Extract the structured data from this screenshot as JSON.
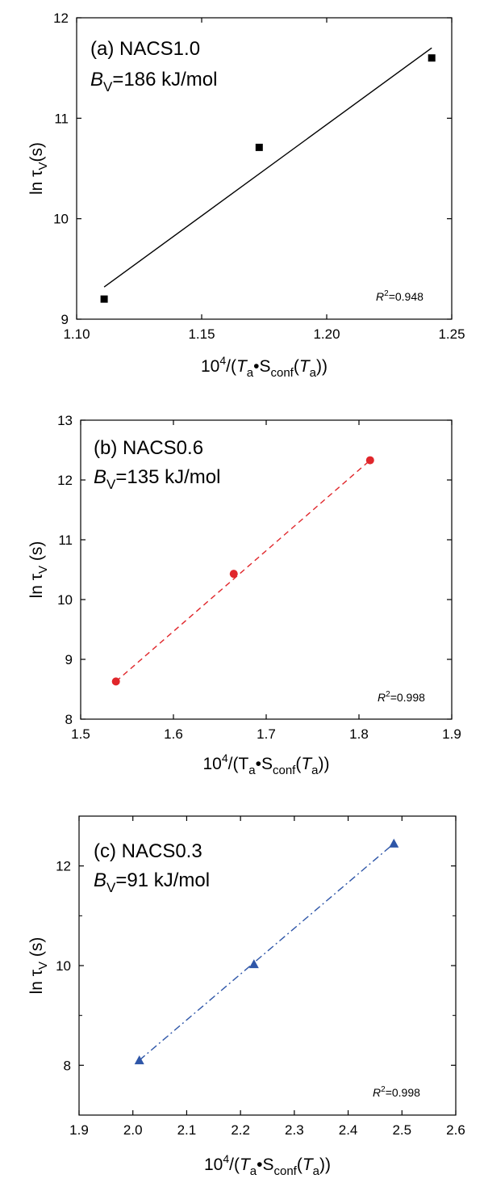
{
  "chart_data": [
    {
      "type": "scatter",
      "panel": "(a) NACS1.0",
      "bv_symbol": "B",
      "bv_sub": "V",
      "bv_value": "=186 kJ/mol",
      "r2_symbol": "R",
      "r2_sup": "2",
      "r2_value": "=0.948",
      "ylabel": {
        "prefix": "ln τ",
        "sub": "V",
        "suffix": "(s)"
      },
      "xlabel": {
        "lead": "10",
        "sup": "4",
        "slash": "/(",
        "t": "T",
        "tsub": "a",
        "dot": "•S",
        "ssub": "conf",
        "open": "(",
        "t2": "T",
        "t2sub": "a",
        "close": "))"
      },
      "xlim": [
        1.1,
        1.25
      ],
      "ylim": [
        9,
        12
      ],
      "xticks": [
        "1.10",
        "1.15",
        "1.20",
        "1.25"
      ],
      "yticks": [
        "9",
        "10",
        "11",
        "12"
      ],
      "xtick_values": [
        1.1,
        1.15,
        1.2,
        1.25
      ],
      "ytick_values": [
        9,
        10,
        11,
        12
      ],
      "points": [
        {
          "x": 1.111,
          "y": 9.2
        },
        {
          "x": 1.173,
          "y": 10.71
        },
        {
          "x": 1.242,
          "y": 11.6
        }
      ],
      "fit_line": [
        {
          "x": 1.111,
          "y": 9.32
        },
        {
          "x": 1.242,
          "y": 11.7
        }
      ],
      "marker": "square",
      "color": "#000000",
      "line_style": "solid"
    },
    {
      "type": "scatter",
      "panel": "(b) NACS0.6",
      "bv_symbol": "B",
      "bv_sub": "V",
      "bv_value": "=135 kJ/mol",
      "r2_symbol": "R",
      "r2_sup": "2",
      "r2_value": "=0.998",
      "ylabel": {
        "prefix": "ln τ",
        "sub": "V",
        "suffix": " (s)"
      },
      "xlabel": {
        "lead": "10",
        "sup": "4",
        "slash": "/(T",
        "t": "",
        "tsub": "a",
        "dot": "•S",
        "ssub": "conf",
        "open": "(",
        "t2": "T",
        "t2sub": "a",
        "close": "))"
      },
      "xlim": [
        1.5,
        1.9
      ],
      "ylim": [
        8,
        13
      ],
      "xticks": [
        "1.5",
        "1.6",
        "1.7",
        "1.8",
        "1.9"
      ],
      "yticks": [
        "8",
        "9",
        "10",
        "11",
        "12",
        "13"
      ],
      "xtick_values": [
        1.5,
        1.6,
        1.7,
        1.8,
        1.9
      ],
      "ytick_values": [
        8,
        9,
        10,
        11,
        12,
        13
      ],
      "points": [
        {
          "x": 1.538,
          "y": 8.63
        },
        {
          "x": 1.665,
          "y": 10.43
        },
        {
          "x": 1.812,
          "y": 12.33
        }
      ],
      "fit_line": [
        {
          "x": 1.538,
          "y": 8.63
        },
        {
          "x": 1.812,
          "y": 12.33
        }
      ],
      "marker": "circle",
      "color": "#e0262b",
      "line_style": "dashed"
    },
    {
      "type": "scatter",
      "panel": "(c) NACS0.3",
      "bv_symbol": "B",
      "bv_sub": "V",
      "bv_value": "=91 kJ/mol",
      "r2_symbol": "R",
      "r2_sup": "2",
      "r2_value": "=0.998",
      "ylabel": {
        "prefix": "ln τ",
        "sub": "V",
        "suffix": " (s)"
      },
      "xlabel": {
        "lead": "10",
        "sup": "4",
        "slash": "/(",
        "t": "T",
        "tsub": "a",
        "dot": "•S",
        "ssub": "conf",
        "open": "(",
        "t2": "T",
        "t2sub": "a",
        "close": "))"
      },
      "xlim": [
        1.9,
        2.6
      ],
      "ylim": [
        7,
        13
      ],
      "xticks": [
        "1.9",
        "2.0",
        "2.1",
        "2.2",
        "2.3",
        "2.4",
        "2.5",
        "2.6"
      ],
      "yticks": [
        "8",
        "10",
        "12"
      ],
      "xtick_values": [
        1.9,
        2.0,
        2.1,
        2.2,
        2.3,
        2.4,
        2.5,
        2.6
      ],
      "ytick_values": [
        8,
        10,
        12
      ],
      "minor_ytick_values": [
        9,
        11
      ],
      "points": [
        {
          "x": 2.012,
          "y": 8.1
        },
        {
          "x": 2.225,
          "y": 10.03
        },
        {
          "x": 2.485,
          "y": 12.45
        }
      ],
      "fit_line": [
        {
          "x": 2.012,
          "y": 8.1
        },
        {
          "x": 2.485,
          "y": 12.45
        }
      ],
      "marker": "triangle",
      "color": "#2e56a8",
      "line_style": "dashdot"
    }
  ]
}
